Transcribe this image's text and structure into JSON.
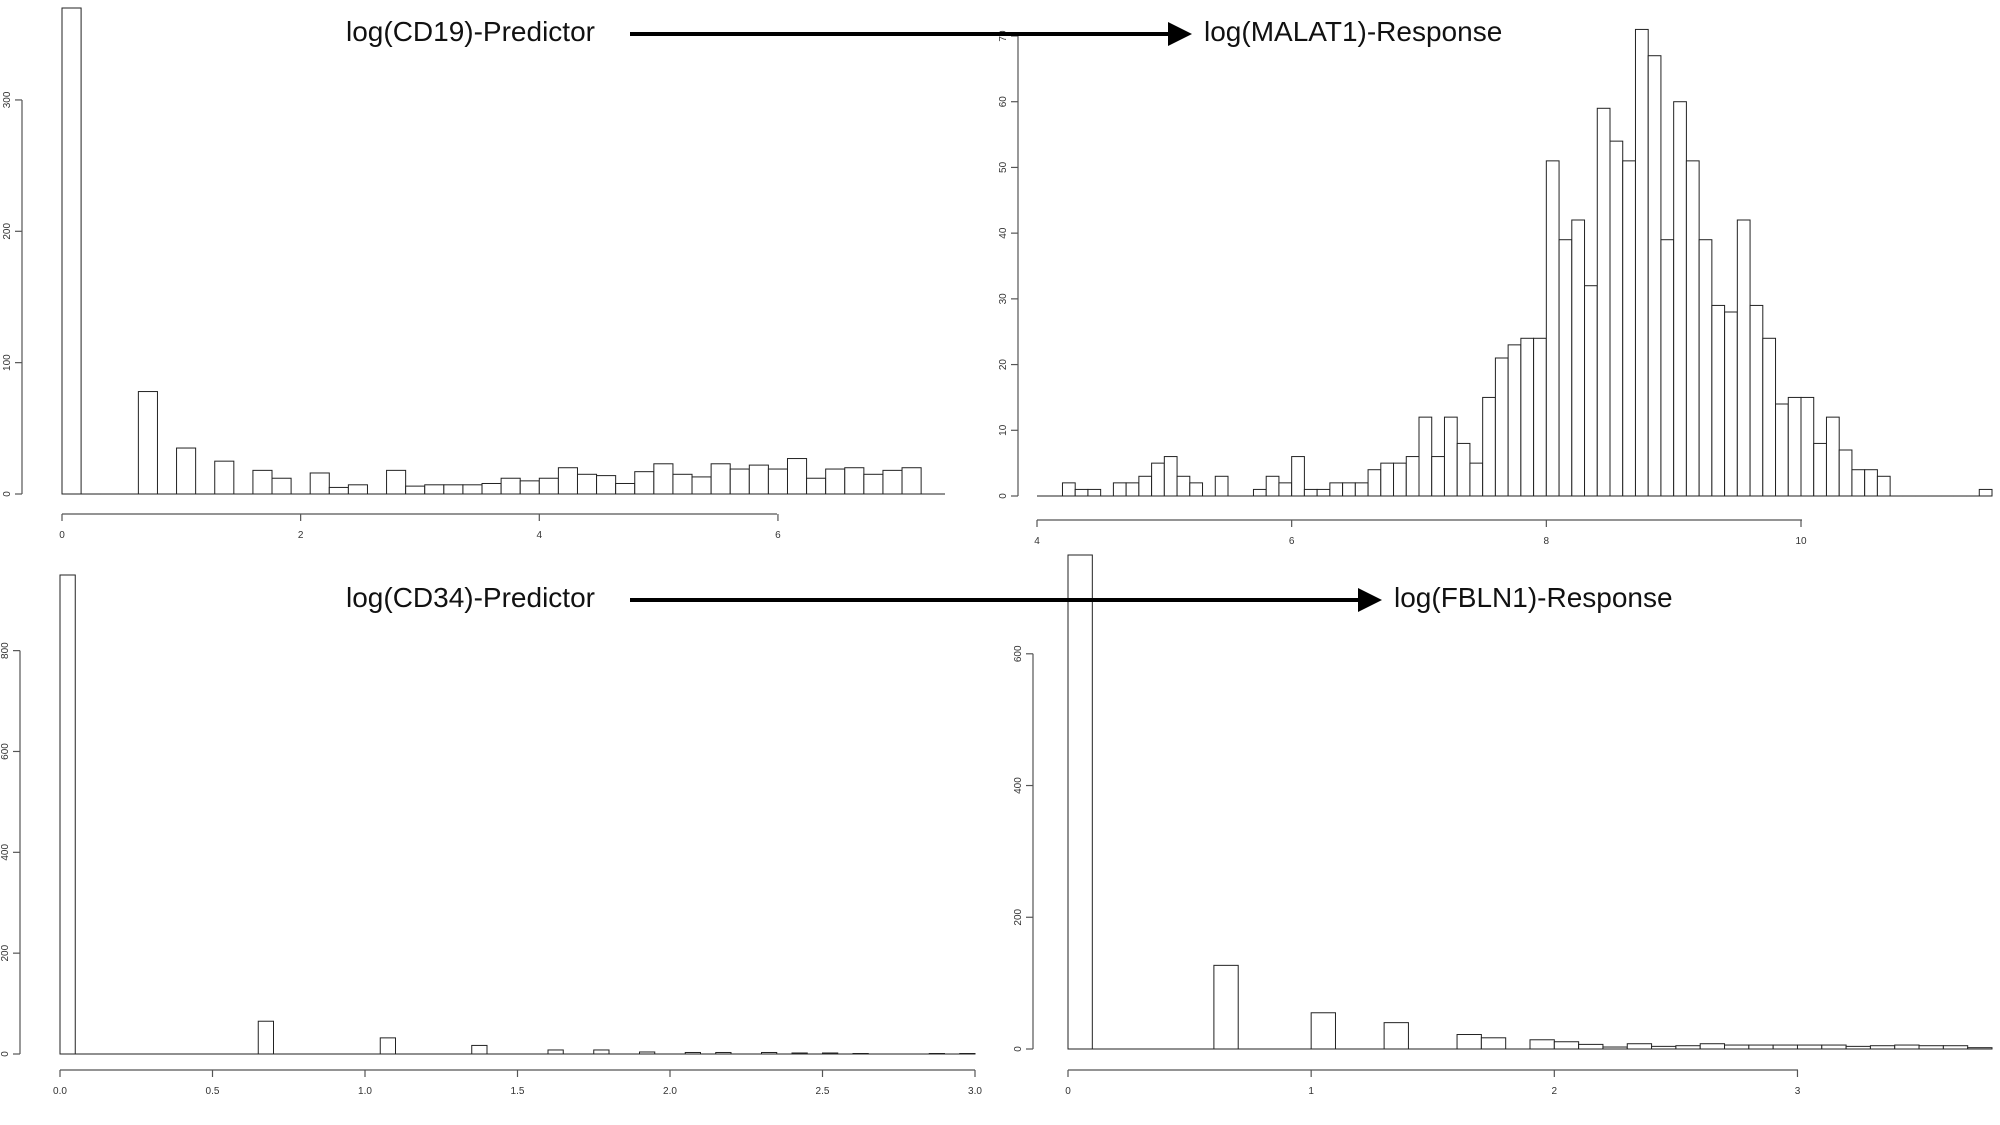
{
  "annotations": {
    "top_predictor": "log(CD19)-Predictor",
    "top_response": "log(MALAT1)-Response",
    "bottom_predictor": "log(CD34)-Predictor",
    "bottom_response": "log(FBLN1)-Response"
  },
  "chart_data": [
    {
      "type": "bar",
      "histogram": true,
      "title": "",
      "xlabel": "",
      "ylabel": "",
      "xlim": [
        0,
        7.4
      ],
      "ylim": [
        0,
        370
      ],
      "xticks": [
        0,
        2,
        4,
        6
      ],
      "yticks": [
        0,
        100,
        200,
        300
      ],
      "bin_width": 0.16,
      "bins": [
        [
          0.0,
          370
        ],
        [
          0.16,
          0
        ],
        [
          0.32,
          0
        ],
        [
          0.48,
          0
        ],
        [
          0.64,
          78
        ],
        [
          0.8,
          0
        ],
        [
          0.96,
          35
        ],
        [
          1.12,
          0
        ],
        [
          1.28,
          25
        ],
        [
          1.44,
          0
        ],
        [
          1.6,
          18
        ],
        [
          1.76,
          12
        ],
        [
          1.92,
          0
        ],
        [
          2.08,
          16
        ],
        [
          2.24,
          5
        ],
        [
          2.4,
          7
        ],
        [
          2.56,
          0
        ],
        [
          2.72,
          18
        ],
        [
          2.88,
          6
        ],
        [
          3.04,
          7
        ],
        [
          3.2,
          7
        ],
        [
          3.36,
          7
        ],
        [
          3.52,
          8
        ],
        [
          3.68,
          12
        ],
        [
          3.84,
          10
        ],
        [
          4.0,
          12
        ],
        [
          4.16,
          20
        ],
        [
          4.32,
          15
        ],
        [
          4.48,
          14
        ],
        [
          4.64,
          8
        ],
        [
          4.8,
          17
        ],
        [
          4.96,
          23
        ],
        [
          5.12,
          15
        ],
        [
          5.28,
          13
        ],
        [
          5.44,
          23
        ],
        [
          5.6,
          19
        ],
        [
          5.76,
          22
        ],
        [
          5.92,
          19
        ],
        [
          6.08,
          27
        ],
        [
          6.24,
          12
        ],
        [
          6.4,
          19
        ],
        [
          6.56,
          20
        ],
        [
          6.72,
          15
        ],
        [
          6.88,
          18
        ],
        [
          7.04,
          20
        ]
      ]
    },
    {
      "type": "bar",
      "histogram": true,
      "title": "",
      "xlabel": "",
      "ylabel": "",
      "xlim": [
        4,
        11.5
      ],
      "ylim": [
        0,
        70
      ],
      "xticks": [
        4,
        6,
        8,
        10
      ],
      "yticks": [
        0,
        10,
        20,
        30,
        40,
        50,
        60,
        70
      ],
      "bin_width": 0.1,
      "bins": [
        [
          4.2,
          2
        ],
        [
          4.3,
          1
        ],
        [
          4.4,
          1
        ],
        [
          4.5,
          0
        ],
        [
          4.6,
          2
        ],
        [
          4.7,
          2
        ],
        [
          4.8,
          3
        ],
        [
          4.9,
          5
        ],
        [
          5.0,
          6
        ],
        [
          5.1,
          3
        ],
        [
          5.2,
          2
        ],
        [
          5.3,
          0
        ],
        [
          5.4,
          3
        ],
        [
          5.5,
          0
        ],
        [
          5.6,
          0
        ],
        [
          5.7,
          1
        ],
        [
          5.8,
          3
        ],
        [
          5.9,
          2
        ],
        [
          6.0,
          6
        ],
        [
          6.1,
          1
        ],
        [
          6.2,
          1
        ],
        [
          6.3,
          2
        ],
        [
          6.4,
          2
        ],
        [
          6.5,
          2
        ],
        [
          6.6,
          4
        ],
        [
          6.7,
          5
        ],
        [
          6.8,
          5
        ],
        [
          6.9,
          6
        ],
        [
          7.0,
          12
        ],
        [
          7.1,
          6
        ],
        [
          7.2,
          12
        ],
        [
          7.3,
          8
        ],
        [
          7.4,
          5
        ],
        [
          7.5,
          15
        ],
        [
          7.6,
          21
        ],
        [
          7.7,
          23
        ],
        [
          7.8,
          24
        ],
        [
          7.9,
          24
        ],
        [
          8.0,
          51
        ],
        [
          8.1,
          39
        ],
        [
          8.2,
          42
        ],
        [
          8.3,
          32
        ],
        [
          8.4,
          59
        ],
        [
          8.5,
          54
        ],
        [
          8.6,
          51
        ],
        [
          8.7,
          71
        ],
        [
          8.8,
          67
        ],
        [
          8.9,
          39
        ],
        [
          9.0,
          60
        ],
        [
          9.1,
          51
        ],
        [
          9.2,
          39
        ],
        [
          9.3,
          29
        ],
        [
          9.4,
          28
        ],
        [
          9.5,
          42
        ],
        [
          9.6,
          29
        ],
        [
          9.7,
          24
        ],
        [
          9.8,
          14
        ],
        [
          9.9,
          15
        ],
        [
          10.0,
          15
        ],
        [
          10.1,
          8
        ],
        [
          10.2,
          12
        ],
        [
          10.3,
          7
        ],
        [
          10.4,
          4
        ],
        [
          10.5,
          4
        ],
        [
          10.6,
          3
        ],
        [
          10.7,
          0
        ],
        [
          10.8,
          0
        ],
        [
          10.9,
          0
        ],
        [
          11.0,
          0
        ],
        [
          11.1,
          0
        ],
        [
          11.2,
          0
        ],
        [
          11.3,
          0
        ],
        [
          11.4,
          1
        ]
      ]
    },
    {
      "type": "bar",
      "histogram": true,
      "title": "",
      "xlabel": "",
      "ylabel": "",
      "xlim": [
        0,
        3.0
      ],
      "ylim": [
        0,
        950
      ],
      "xticks": [
        "0.0",
        "0.5",
        "1.0",
        "1.5",
        "2.0",
        "2.5",
        "3.0"
      ],
      "yticks": [
        0,
        200,
        400,
        600,
        800
      ],
      "bin_width": 0.05,
      "bins": [
        [
          0.0,
          950
        ],
        [
          0.65,
          65
        ],
        [
          1.05,
          32
        ],
        [
          1.35,
          17
        ],
        [
          1.6,
          8
        ],
        [
          1.75,
          8
        ],
        [
          1.9,
          4
        ],
        [
          2.05,
          3
        ],
        [
          2.15,
          3
        ],
        [
          2.3,
          3
        ],
        [
          2.4,
          2
        ],
        [
          2.5,
          2
        ],
        [
          2.6,
          1
        ],
        [
          2.85,
          1
        ],
        [
          2.95,
          1
        ]
      ]
    },
    {
      "type": "bar",
      "histogram": true,
      "title": "",
      "xlabel": "",
      "ylabel": "",
      "xlim": [
        0,
        3.8
      ],
      "ylim": [
        0,
        750
      ],
      "xticks": [
        0,
        1,
        2,
        3
      ],
      "yticks": [
        0,
        200,
        400,
        600
      ],
      "bin_width": 0.1,
      "bins": [
        [
          0.0,
          750
        ],
        [
          0.6,
          127
        ],
        [
          1.0,
          55
        ],
        [
          1.3,
          40
        ],
        [
          1.6,
          22
        ],
        [
          1.7,
          17
        ],
        [
          1.9,
          14
        ],
        [
          2.0,
          11
        ],
        [
          2.1,
          7
        ],
        [
          2.2,
          3
        ],
        [
          2.3,
          8
        ],
        [
          2.4,
          4
        ],
        [
          2.5,
          5
        ],
        [
          2.6,
          8
        ],
        [
          2.7,
          6
        ],
        [
          2.8,
          6
        ],
        [
          2.9,
          6
        ],
        [
          3.0,
          6
        ],
        [
          3.1,
          6
        ],
        [
          3.2,
          4
        ],
        [
          3.3,
          5
        ],
        [
          3.4,
          6
        ],
        [
          3.5,
          5
        ],
        [
          3.6,
          5
        ],
        [
          3.7,
          2
        ]
      ]
    }
  ]
}
